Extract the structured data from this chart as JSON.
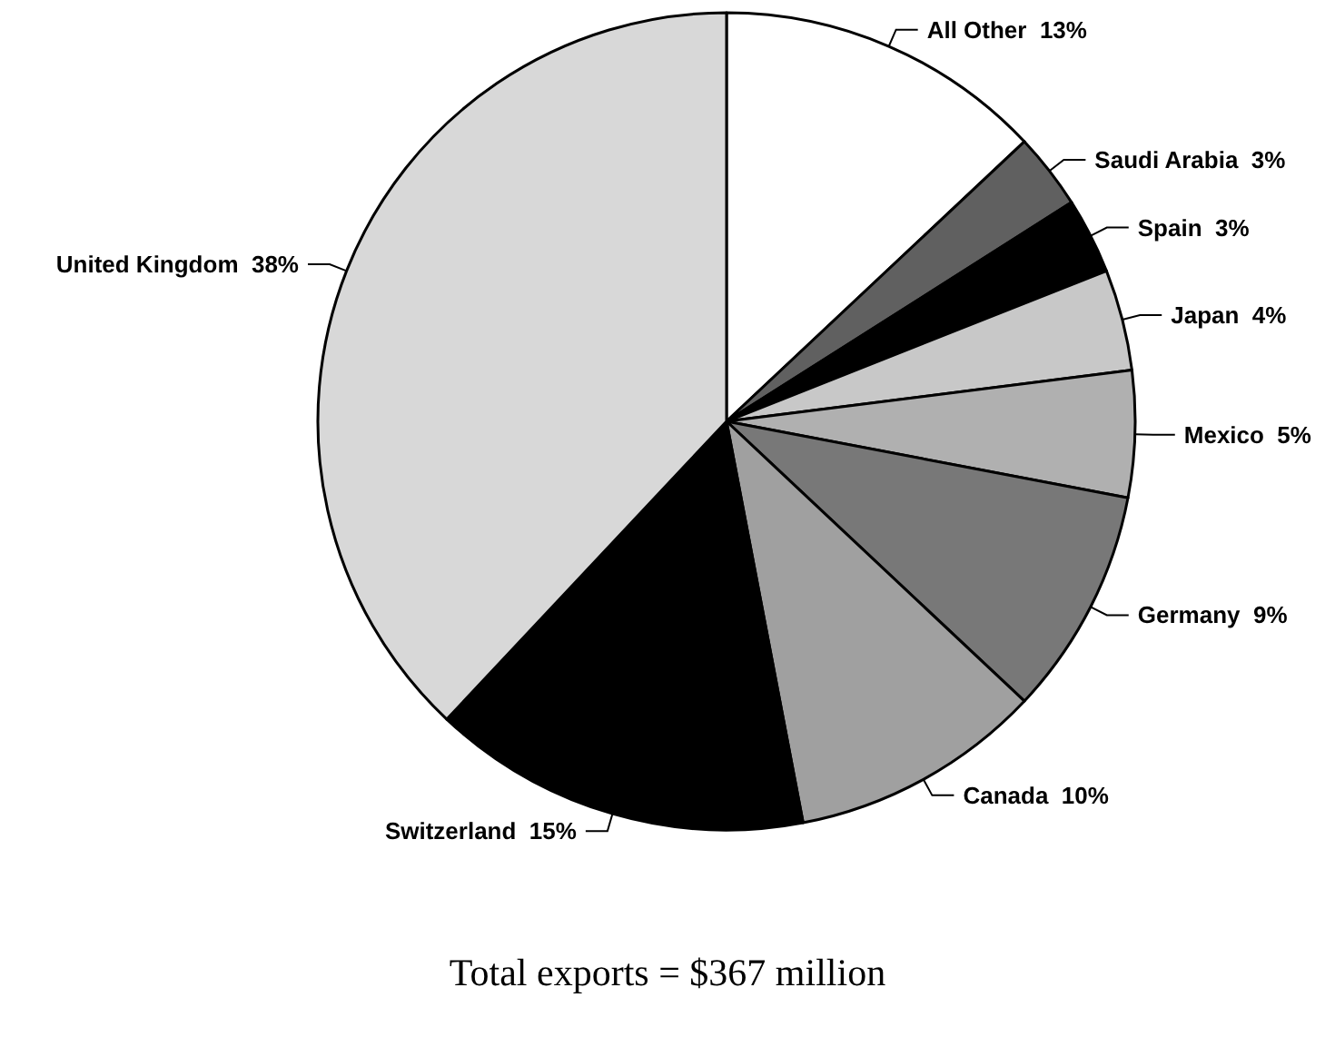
{
  "chart_data": {
    "type": "pie",
    "title": "Total exports = $367 million",
    "categories": [
      "All Other",
      "Saudi Arabia",
      "Spain",
      "Japan",
      "Mexico",
      "Germany",
      "Canada",
      "Switzerland",
      "United Kingdom"
    ],
    "values": [
      13,
      3,
      3,
      4,
      5,
      9,
      10,
      15,
      38
    ],
    "value_labels": [
      "13%",
      "3%",
      "3%",
      "4%",
      "5%",
      "9%",
      "10%",
      "15%",
      "38%"
    ],
    "colors": [
      "#ffffff",
      "#606060",
      "#000000",
      "#c8c8c8",
      "#b0b0b0",
      "#787878",
      "#a0a0a0",
      "#000000",
      "#d8d8d8"
    ],
    "legend": false
  }
}
